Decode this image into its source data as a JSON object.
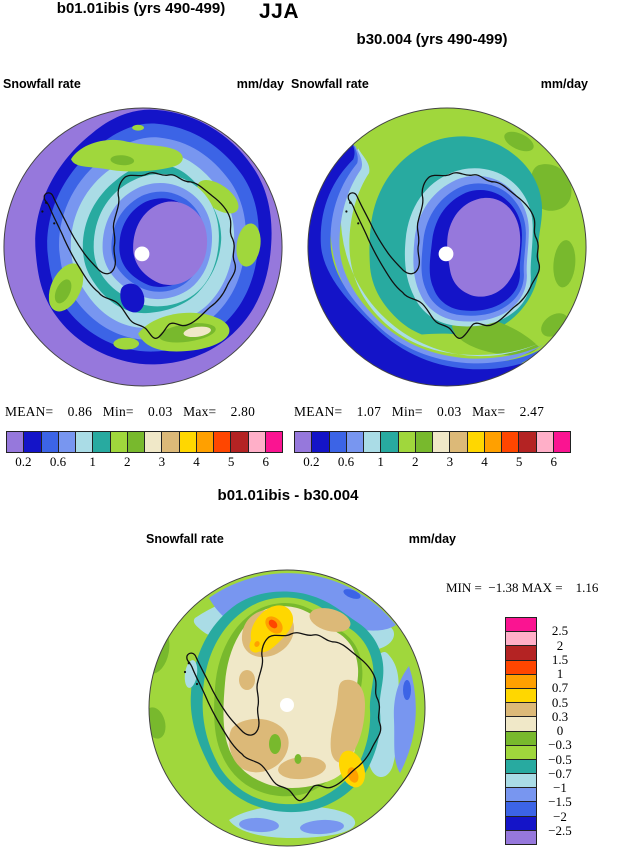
{
  "header": {
    "title": "JJA"
  },
  "palette": {
    "purple": "#9678DC",
    "darkblue": "#1414C8",
    "blue": "#3C64E6",
    "periwinkle": "#7896F0",
    "palecyan": "#AADCE6",
    "teal": "#28AAA0",
    "yellowgreen": "#A0D73C",
    "green": "#78B92D",
    "cream": "#F0E8C8",
    "tan": "#DCB978",
    "yellow": "#FFD700",
    "orange": "#FFA000",
    "orangered": "#FF4600",
    "darkred": "#B42323",
    "pink": "#FFAFC8",
    "magenta": "#FA1491",
    "coast": "#111111",
    "pole_dot": "#FFFFFF",
    "map_border": "#444444"
  },
  "panels": [
    {
      "title": "b01.01ibis (yrs 490-499)",
      "var_label": "Snowfall rate",
      "units": "mm/day",
      "stats_line": "MEAN=    0.86   Min=    0.03   Max=    2.80"
    },
    {
      "title": "b30.004 (yrs 490-499)",
      "var_label": "Snowfall rate",
      "units": "mm/day",
      "stats_line": "MEAN=    1.07   Min=    0.03   Max=    2.47"
    },
    {
      "title": "b01.01ibis - b30.004",
      "var_label": "Snowfall rate",
      "units": "mm/day",
      "minmax_line": "MIN =  −1.38 MAX =    1.16"
    }
  ],
  "colorbar_h": {
    "segments": [
      "purple",
      "darkblue",
      "blue",
      "periwinkle",
      "palecyan",
      "teal",
      "yellowgreen",
      "green",
      "cream",
      "tan",
      "yellow",
      "orange",
      "orangered",
      "darkred",
      "pink",
      "magenta"
    ],
    "ticks": [
      {
        "label": "0.2",
        "boundary": 1
      },
      {
        "label": "0.6",
        "boundary": 3
      },
      {
        "label": "1",
        "boundary": 5
      },
      {
        "label": "2",
        "boundary": 7
      },
      {
        "label": "3",
        "boundary": 9
      },
      {
        "label": "4",
        "boundary": 11
      },
      {
        "label": "5",
        "boundary": 13
      },
      {
        "label": "6",
        "boundary": 15
      }
    ]
  },
  "colorbar_v": {
    "segments": [
      "magenta",
      "pink",
      "darkred",
      "orangered",
      "orange",
      "yellow",
      "tan",
      "cream",
      "green",
      "yellowgreen",
      "teal",
      "palecyan",
      "periwinkle",
      "blue",
      "darkblue",
      "purple"
    ],
    "labels": [
      "2.5",
      "2",
      "1.5",
      "1",
      "0.7",
      "0.5",
      "0.3",
      "0",
      "−0.3",
      "−0.5",
      "−0.7",
      "−1",
      "−1.5",
      "−2",
      "−2.5"
    ]
  },
  "chart_data": [
    {
      "type": "heatmap",
      "title": "b01.01ibis (yrs 490-499)",
      "figure_title": "JJA",
      "variable": "Snowfall rate",
      "units": "mm/day",
      "projection": "south polar stereographic (Antarctica)",
      "stats": {
        "mean": 0.86,
        "min": 0.03,
        "max": 2.8
      },
      "contour_levels": [
        0.2,
        0.4,
        0.6,
        0.8,
        1,
        1.5,
        2,
        2.5,
        3,
        3.5,
        4,
        4.5,
        5,
        5.5,
        6
      ],
      "legend_ticks_shown": [
        "0.2",
        "0.6",
        "1",
        "2",
        "3",
        "4",
        "5",
        "6"
      ],
      "legend_position": "bottom",
      "description": "Low values (purple <0.2) at outer edge and over the high interior plateau; maximum ring (teal/green 1-2.5, cream up to ~2.8) along the circumpolar coast/storm track."
    },
    {
      "type": "heatmap",
      "title": "b30.004 (yrs 490-499)",
      "figure_title": "JJA",
      "variable": "Snowfall rate",
      "units": "mm/day",
      "projection": "south polar stereographic (Antarctica)",
      "stats": {
        "mean": 1.07,
        "min": 0.03,
        "max": 2.47
      },
      "contour_levels": [
        0.2,
        0.4,
        0.6,
        0.8,
        1,
        1.5,
        2,
        2.5,
        3,
        3.5,
        4,
        4.5,
        5,
        5.5,
        6
      ],
      "legend_ticks_shown": [
        "0.2",
        "0.6",
        "1",
        "2",
        "3",
        "4",
        "5",
        "6"
      ],
      "legend_position": "bottom",
      "description": "Broad green (1.5-2.5) over most of the ocean sector, dark blue low band at the left/bottom edge, purple plateau (<0.2) over East Antarctica interior."
    },
    {
      "type": "heatmap",
      "title": "b01.01ibis - b30.004",
      "figure_title": "JJA",
      "variable": "Snowfall rate difference",
      "units": "mm/day",
      "projection": "south polar stereographic (Antarctica)",
      "stats": {
        "min": -1.38,
        "max": 1.16
      },
      "contour_levels": [
        -2.5,
        -2,
        -1.5,
        -1,
        -0.7,
        -0.5,
        -0.3,
        0,
        0.3,
        0.5,
        0.7,
        1,
        1.5,
        2,
        2.5
      ],
      "legend_position": "right",
      "description": "Near-zero (cream 0-0.3) over the continent with positive spots (yellow/orange/orange-red up to ~1.16) near the coast at top-center and lower-right; negative ring offshore (green -0.3-0 to periwinkle -1.5--1, min -1.38)."
    }
  ]
}
